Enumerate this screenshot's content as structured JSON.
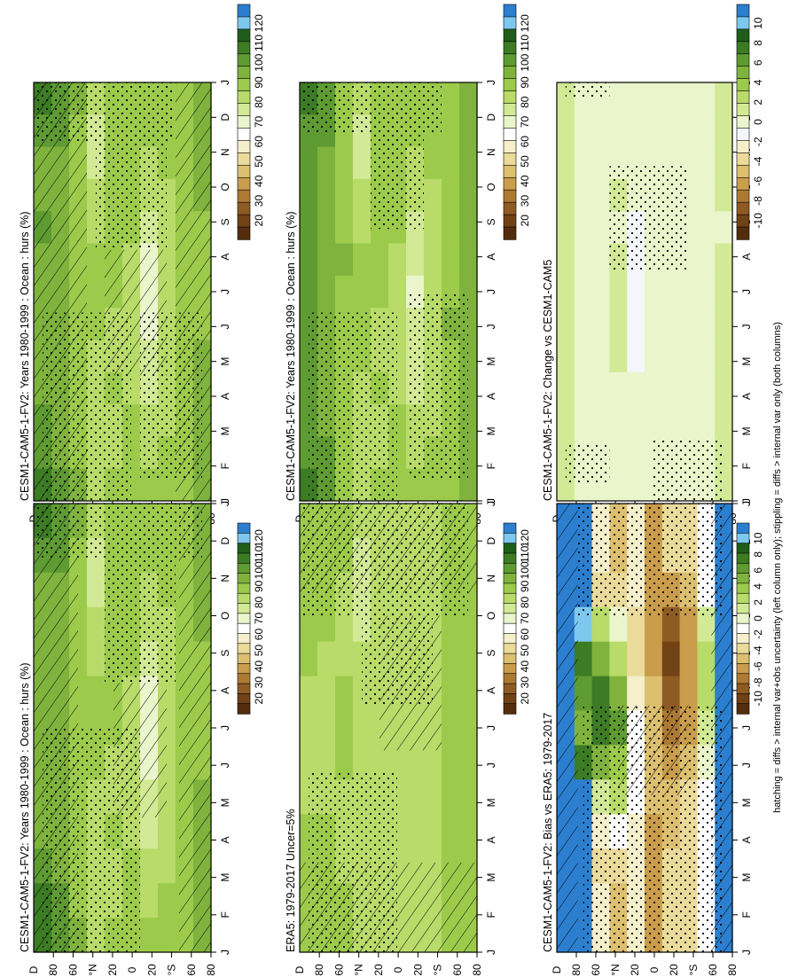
{
  "footnote": "hatching = diffs > internal var+obs uncertainty (left column only); stippling = diffs > internal var only (both columns)",
  "chart_data": [
    {
      "type": "heatmap",
      "title": "CESM1-CAM5-1-FV2: Years 1980-1999 : Ocean : hurs (%)",
      "x_ticks": [
        "J",
        "F",
        "M",
        "A",
        "M",
        "J",
        "J",
        "A",
        "S",
        "O",
        "N",
        "D",
        "J"
      ],
      "y_ticks": [
        "D",
        "80",
        "60",
        "°N",
        "20",
        "0",
        "20",
        "°S",
        "60",
        "80"
      ],
      "colorbar_ticks": [
        "120",
        "110",
        "100",
        "90",
        "80",
        "70",
        "60",
        "50",
        "40",
        "30",
        "20"
      ],
      "colorbar_colors": [
        "#2c7fcf",
        "#7ec8ef",
        "#1f5e1a",
        "#3c7c24",
        "#5e9b32",
        "#7fb33e",
        "#9ccb4c",
        "#b8db6a",
        "#d2e996",
        "#ebf5cc",
        "#ffffff",
        "#f5efcc",
        "#ebdb9a",
        "#dcc070",
        "#c99d4c",
        "#ad7a34",
        "#8f5b24",
        "#714216",
        "#532d0c"
      ],
      "cells": [
        [
          99,
          94,
          92,
          93,
          94,
          93,
          93,
          92,
          92,
          93,
          94,
          95,
          99
        ],
        [
          97,
          94,
          90,
          91,
          92,
          92,
          92,
          91,
          91,
          91,
          92,
          93,
          97
        ],
        [
          89,
          88,
          85,
          86,
          88,
          88,
          88,
          87,
          87,
          86,
          86,
          87,
          89
        ],
        [
          78,
          77,
          76,
          79,
          82,
          85,
          86,
          85,
          83,
          80,
          79,
          78,
          78
        ],
        [
          84,
          85,
          85,
          86,
          86,
          86,
          84,
          82,
          83,
          84,
          83,
          83,
          84
        ],
        [
          86,
          87,
          86,
          85,
          84,
          81,
          80,
          80,
          81,
          83,
          85,
          86,
          86
        ],
        [
          84,
          84,
          82,
          78,
          74,
          72,
          71,
          72,
          73,
          75,
          80,
          83,
          84
        ],
        [
          86,
          86,
          85,
          83,
          80,
          79,
          78,
          79,
          79,
          80,
          83,
          85,
          86
        ],
        [
          88,
          88,
          88,
          88,
          87,
          86,
          85,
          85,
          85,
          86,
          87,
          88,
          88
        ],
        [
          89,
          89,
          89,
          89,
          88,
          88,
          88,
          88,
          89,
          89,
          89,
          89,
          89
        ]
      ]
    },
    {
      "type": "heatmap",
      "title": "CESM1-CAM5-1-FV2: Years 1980-1999 : Ocean : hurs (%)",
      "x_ticks": [
        "J",
        "F",
        "M",
        "A",
        "M",
        "J",
        "J",
        "A",
        "S",
        "O",
        "N",
        "D",
        "J"
      ],
      "y_ticks": [
        "D",
        "80",
        "60",
        "°N",
        "20",
        "0",
        "20",
        "°S",
        "60",
        "80"
      ],
      "colorbar_ticks": [
        "120",
        "110",
        "100",
        "90",
        "80",
        "70",
        "60",
        "50",
        "40",
        "30",
        "20"
      ],
      "colorbar_colors": [
        "#2c7fcf",
        "#7ec8ef",
        "#1f5e1a",
        "#3c7c24",
        "#5e9b32",
        "#7fb33e",
        "#9ccb4c",
        "#b8db6a",
        "#d2e996",
        "#ebf5cc",
        "#ffffff",
        "#f5efcc",
        "#ebdb9a",
        "#dcc070",
        "#c99d4c",
        "#ad7a34",
        "#8f5b24",
        "#714216",
        "#532d0c"
      ],
      "cells": [
        [
          100,
          97,
          95,
          96,
          96,
          96,
          95,
          95,
          95,
          95,
          96,
          97,
          100
        ],
        [
          96,
          95,
          92,
          92,
          93,
          93,
          92,
          92,
          92,
          92,
          93,
          94,
          96
        ],
        [
          88,
          88,
          86,
          87,
          88,
          89,
          88,
          88,
          87,
          87,
          87,
          87,
          88
        ],
        [
          78,
          77,
          76,
          79,
          82,
          85,
          86,
          86,
          84,
          81,
          79,
          78,
          78
        ],
        [
          84,
          85,
          85,
          86,
          86,
          86,
          84,
          83,
          83,
          84,
          83,
          83,
          84
        ],
        [
          86,
          87,
          86,
          85,
          84,
          81,
          80,
          80,
          81,
          83,
          85,
          86,
          86
        ],
        [
          84,
          84,
          82,
          78,
          75,
          73,
          72,
          73,
          74,
          76,
          80,
          83,
          84
        ],
        [
          86,
          86,
          85,
          83,
          81,
          80,
          80,
          80,
          80,
          81,
          83,
          85,
          86
        ],
        [
          88,
          88,
          88,
          88,
          88,
          88,
          88,
          89,
          88,
          88,
          88,
          88,
          88
        ],
        [
          89,
          89,
          89,
          89,
          89,
          89,
          89,
          89,
          89,
          89,
          89,
          89,
          89
        ]
      ]
    },
    {
      "type": "heatmap",
      "title": "CESM1-CAM5-1-FV2: Change vs CESM1-CAM5",
      "x_ticks": [
        "J",
        "F",
        "M",
        "A",
        "M",
        "J",
        "J",
        "A",
        "S",
        "O",
        "N",
        "D",
        "J"
      ],
      "y_ticks": [
        "D",
        "80",
        "60",
        "°N",
        "20",
        "0",
        "20",
        "°S",
        "60",
        "80"
      ],
      "colorbar_ticks": [
        "10",
        "8",
        "6",
        "4",
        "2",
        "0",
        "-2",
        "-4",
        "-6",
        "-8",
        "-10"
      ],
      "colorbar_colors": [
        "#2c7fcf",
        "#7ec8ef",
        "#1f5e1a",
        "#3c7c24",
        "#5e9b32",
        "#7fb33e",
        "#9ccb4c",
        "#b8db6a",
        "#d2e996",
        "#ebf5cc",
        "#f4f6fa",
        "#f5efcc",
        "#ebdb9a",
        "#dcc070",
        "#c99d4c",
        "#ad7a34",
        "#8f5b24",
        "#714216",
        "#532d0c"
      ],
      "cells": [
        [
          1.5,
          1.5,
          1.2,
          1.0,
          1.0,
          1.2,
          1.2,
          1.3,
          1.3,
          1.3,
          1.4,
          1.5,
          1.5
        ],
        [
          0.3,
          0.2,
          0.2,
          0.1,
          0.1,
          0.2,
          0.2,
          0.2,
          0.2,
          0.2,
          0.2,
          0.3,
          0.3
        ],
        [
          0.0,
          0.0,
          0.0,
          -0.2,
          -0.2,
          -0.3,
          -0.3,
          -0.2,
          0.0,
          0.0,
          0.0,
          0.0,
          0.0
        ],
        [
          0.2,
          0.2,
          0.4,
          0.6,
          0.5,
          0.6,
          0.9,
          1.2,
          0.8,
          0.2,
          0.1,
          0.2,
          0.2
        ],
        [
          0.0,
          0.0,
          -0.3,
          -0.5,
          -0.7,
          -0.6,
          -0.8,
          -1.2,
          -0.6,
          -0.2,
          0.0,
          0.0,
          0.0
        ],
        [
          0.0,
          0.0,
          0.0,
          -0.3,
          -0.5,
          -0.4,
          -0.3,
          -0.2,
          -0.1,
          0.0,
          0.0,
          0.0,
          0.0
        ],
        [
          0.0,
          0.0,
          0.0,
          0.0,
          -0.2,
          -0.3,
          -0.3,
          -0.2,
          -0.1,
          0.0,
          0.0,
          0.0,
          0.0
        ],
        [
          0.0,
          0.0,
          0.0,
          0.0,
          0.0,
          0.0,
          0.0,
          0.0,
          0.0,
          0.0,
          0.0,
          0.0,
          0.0
        ],
        [
          0.0,
          0.0,
          0.0,
          0.0,
          0.0,
          0.0,
          0.0,
          0.0,
          0.0,
          0.0,
          0.0,
          0.0,
          0.0
        ],
        [
          0.9,
          0.8,
          0.6,
          0.6,
          0.5,
          0.6,
          0.6,
          0.7,
          0.7,
          0.8,
          0.8,
          0.9,
          0.9
        ]
      ]
    },
    {
      "type": "heatmap",
      "title": "CESM1-CAM5-1-FV2: Years 1980-1999 : Ocean : hurs (%)",
      "x_ticks": [
        "J",
        "F",
        "M",
        "A",
        "M",
        "J",
        "J",
        "A",
        "S",
        "O",
        "N",
        "D",
        "J"
      ],
      "y_ticks": [
        "D",
        "80",
        "60",
        "°N",
        "20",
        "0",
        "20",
        "°S",
        "60",
        "80"
      ],
      "colorbar_ticks": [
        "120",
        "110",
        "100",
        "90",
        "80",
        "70",
        "60",
        "50",
        "40",
        "30",
        "20"
      ],
      "colorbar_colors": [
        "#2c7fcf",
        "#7ec8ef",
        "#1f5e1a",
        "#3c7c24",
        "#5e9b32",
        "#7fb33e",
        "#9ccb4c",
        "#b8db6a",
        "#d2e996",
        "#ebf5cc",
        "#ffffff",
        "#f5efcc",
        "#ebdb9a",
        "#dcc070",
        "#c99d4c",
        "#ad7a34",
        "#8f5b24",
        "#714216",
        "#532d0c"
      ],
      "cells": [
        [
          104,
          98,
          92,
          90,
          90,
          92,
          93,
          92,
          92,
          93,
          96,
          100,
          104
        ],
        [
          97,
          94,
          90,
          89,
          90,
          91,
          91,
          91,
          91,
          91,
          92,
          94,
          97
        ],
        [
          89,
          88,
          86,
          86,
          88,
          88,
          88,
          87,
          87,
          86,
          86,
          87,
          89
        ],
        [
          78,
          77,
          76,
          79,
          82,
          85,
          86,
          85,
          83,
          80,
          79,
          78,
          78
        ],
        [
          84,
          85,
          85,
          86,
          86,
          86,
          84,
          82,
          83,
          84,
          83,
          83,
          84
        ],
        [
          86,
          87,
          86,
          85,
          84,
          81,
          80,
          80,
          81,
          83,
          85,
          86,
          86
        ],
        [
          84,
          84,
          82,
          78,
          74,
          72,
          71,
          72,
          73,
          75,
          80,
          83,
          84
        ],
        [
          86,
          86,
          85,
          83,
          80,
          79,
          78,
          79,
          79,
          80,
          83,
          85,
          86
        ],
        [
          88,
          88,
          88,
          88,
          87,
          86,
          85,
          85,
          85,
          86,
          87,
          88,
          88
        ],
        [
          89,
          89,
          89,
          89,
          88,
          88,
          88,
          88,
          89,
          89,
          89,
          89,
          89
        ]
      ]
    },
    {
      "type": "heatmap",
      "title": "ERA5: 1979-2017 Uncer=5%",
      "x_ticks": [
        "J",
        "F",
        "M",
        "A",
        "M",
        "J",
        "J",
        "A",
        "S",
        "O",
        "N",
        "D",
        "J"
      ],
      "y_ticks": [
        "D",
        "80",
        "60",
        "°N",
        "20",
        "0",
        "20",
        "°S",
        "60",
        "80"
      ],
      "colorbar_ticks": [
        "120",
        "110",
        "100",
        "90",
        "80",
        "70",
        "60",
        "50",
        "40",
        "30",
        "20"
      ],
      "colorbar_colors": [
        "#2c7fcf",
        "#7ec8ef",
        "#1f5e1a",
        "#3c7c24",
        "#5e9b32",
        "#7fb33e",
        "#9ccb4c",
        "#b8db6a",
        "#d2e996",
        "#ebf5cc",
        "#ffffff",
        "#f5efcc",
        "#ebdb9a",
        "#dcc070",
        "#c99d4c",
        "#ad7a34",
        "#8f5b24",
        "#714216",
        "#532d0c"
      ],
      "cells": [
        [
          86,
          86,
          86,
          85,
          84,
          83,
          82,
          82,
          83,
          84,
          85,
          86,
          86
        ],
        [
          86,
          86,
          85,
          84,
          83,
          83,
          82,
          82,
          83,
          84,
          85,
          86,
          86
        ],
        [
          84,
          84,
          83,
          83,
          83,
          84,
          84,
          84,
          83,
          83,
          83,
          84,
          84
        ],
        [
          78,
          77,
          76,
          77,
          79,
          81,
          82,
          82,
          80,
          78,
          78,
          78,
          78
        ],
        [
          82,
          82,
          82,
          83,
          83,
          83,
          82,
          82,
          82,
          82,
          82,
          82,
          82
        ],
        [
          83,
          83,
          83,
          82,
          82,
          81,
          81,
          81,
          81,
          82,
          83,
          83,
          83
        ],
        [
          82,
          82,
          81,
          80,
          79,
          78,
          78,
          79,
          79,
          80,
          81,
          82,
          82
        ],
        [
          83,
          83,
          83,
          83,
          82,
          82,
          82,
          82,
          82,
          83,
          83,
          83,
          83
        ],
        [
          84,
          84,
          84,
          84,
          84,
          84,
          84,
          84,
          84,
          84,
          84,
          84,
          84
        ],
        [
          85,
          85,
          85,
          85,
          85,
          85,
          85,
          85,
          85,
          85,
          85,
          85,
          85
        ]
      ]
    },
    {
      "type": "heatmap",
      "title": "CESM1-CAM5-1-FV2: Bias vs ERA5: 1979-2017",
      "x_ticks": [
        "J",
        "F",
        "M",
        "A",
        "M",
        "J",
        "J",
        "A",
        "S",
        "O",
        "N",
        "D",
        "J"
      ],
      "y_ticks": [
        "D",
        "80",
        "60",
        "°N",
        "20",
        "0",
        "20",
        "°S",
        "60",
        "80"
      ],
      "colorbar_ticks": [
        "10",
        "8",
        "6",
        "4",
        "2",
        "0",
        "-2",
        "-4",
        "-6",
        "-8",
        "-10"
      ],
      "colorbar_colors": [
        "#2c7fcf",
        "#7ec8ef",
        "#1f5e1a",
        "#3c7c24",
        "#5e9b32",
        "#7fb33e",
        "#9ccb4c",
        "#b8db6a",
        "#d2e996",
        "#ebf5cc",
        "#ffffff",
        "#f5efcc",
        "#ebdb9a",
        "#dcc070",
        "#c99d4c",
        "#ad7a34",
        "#8f5b24",
        "#714216",
        "#532d0c"
      ],
      "cells": [
        [
          12,
          12,
          11,
          11,
          11,
          11,
          11,
          11,
          11,
          12,
          12,
          12,
          12
        ],
        [
          12,
          12,
          11,
          8,
          6,
          5,
          4,
          6,
          9,
          11,
          12,
          12,
          12
        ],
        [
          -2,
          -2,
          -3,
          2,
          4,
          6,
          6,
          4,
          1,
          -2,
          -3,
          -2,
          -2
        ],
        [
          -4,
          -4,
          -3,
          0,
          2,
          4,
          5,
          3,
          2,
          -1,
          -3,
          -4,
          -4
        ],
        [
          -2,
          -2,
          -2,
          -3,
          -3,
          -2,
          -1,
          -1,
          -1,
          -2,
          -2,
          -2,
          -2
        ],
        [
          -5,
          -5,
          -5,
          -5,
          -5,
          -4,
          -4,
          -4,
          -4,
          -5,
          -5,
          -5,
          -5
        ],
        [
          -3,
          -3,
          -5,
          -7,
          -8,
          -7,
          -6,
          -5,
          -4,
          -4,
          -3,
          -3,
          -3
        ],
        [
          -3,
          -3,
          -4,
          -5,
          -5,
          -5,
          -5,
          -4,
          -3,
          -3,
          -3,
          -3,
          -3
        ],
        [
          -1,
          -1,
          -1,
          1,
          2,
          2,
          1,
          0,
          -1,
          -1,
          -1,
          -1,
          -1
        ],
        [
          12,
          12,
          12,
          12,
          12,
          12,
          12,
          12,
          12,
          12,
          12,
          12,
          12
        ]
      ]
    }
  ]
}
